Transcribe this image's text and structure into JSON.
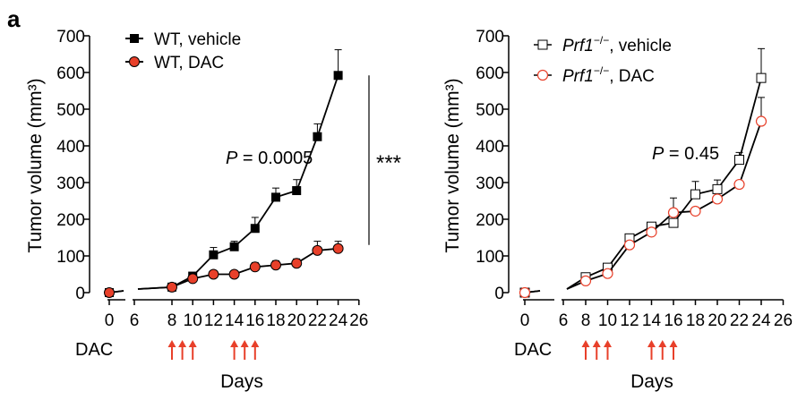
{
  "panel_label": "a",
  "dac_label": "DAC",
  "colors": {
    "vehicle": "#000000",
    "dac": "#e8402a",
    "arrow": "#e8402a",
    "axis": "#000000"
  },
  "chart_data": [
    {
      "type": "line",
      "ylabel": "Tumor volume (mm³)",
      "xlabel": "Days",
      "ylim": [
        0,
        700
      ],
      "yticks": [
        0,
        100,
        200,
        300,
        400,
        500,
        600,
        700
      ],
      "xticks": [
        "0",
        "6",
        "8",
        "10",
        "12",
        "14",
        "16",
        "18",
        "20",
        "22",
        "24",
        "26"
      ],
      "pvalue_prefix": "P",
      "pvalue_text": " = 0.0005",
      "significance": "***",
      "dac_days": [
        8,
        9,
        10,
        14,
        15,
        16
      ],
      "series": [
        {
          "name": "WT, vehicle",
          "marker": "square-filled",
          "x": [
            0,
            8,
            10,
            12,
            14,
            16,
            18,
            20,
            22,
            24
          ],
          "y": [
            0,
            15,
            45,
            103,
            125,
            175,
            260,
            278,
            425,
            592
          ],
          "err": [
            5,
            5,
            8,
            20,
            15,
            30,
            25,
            30,
            35,
            70
          ]
        },
        {
          "name": "WT, DAC",
          "marker": "circle-filled",
          "x": [
            0,
            8,
            10,
            12,
            14,
            16,
            18,
            20,
            22,
            24
          ],
          "y": [
            0,
            15,
            38,
            50,
            50,
            70,
            75,
            80,
            115,
            120
          ],
          "err": [
            5,
            5,
            5,
            5,
            5,
            12,
            12,
            12,
            25,
            20
          ]
        }
      ]
    },
    {
      "type": "line",
      "ylabel": "Tumor volume (mm³)",
      "xlabel": "Days",
      "ylim": [
        0,
        700
      ],
      "yticks": [
        0,
        100,
        200,
        300,
        400,
        500,
        600,
        700
      ],
      "xticks": [
        "0",
        "6",
        "8",
        "10",
        "12",
        "14",
        "16",
        "18",
        "20",
        "22",
        "24",
        "26"
      ],
      "pvalue_prefix": "P",
      "pvalue_text": " = 0.45",
      "dac_days": [
        8,
        9,
        10,
        14,
        15,
        16
      ],
      "series": [
        {
          "name_italic": "Prf1",
          "name_sup": "−/−",
          "name_rest": ", vehicle",
          "marker": "square-open",
          "x": [
            0,
            8,
            10,
            12,
            14,
            16,
            18,
            20,
            22,
            24
          ],
          "y": [
            0,
            42,
            68,
            148,
            180,
            190,
            268,
            282,
            362,
            585
          ],
          "err": [
            5,
            8,
            10,
            10,
            10,
            10,
            35,
            25,
            20,
            80
          ]
        },
        {
          "name_italic": "Prf1",
          "name_sup": "−/−",
          "name_rest": ", DAC",
          "marker": "circle-open",
          "x": [
            0,
            8,
            10,
            12,
            14,
            16,
            18,
            20,
            22,
            24
          ],
          "y": [
            0,
            32,
            52,
            130,
            165,
            218,
            222,
            255,
            295,
            467
          ],
          "err": [
            5,
            5,
            5,
            5,
            8,
            40,
            10,
            10,
            10,
            65
          ]
        }
      ]
    }
  ]
}
